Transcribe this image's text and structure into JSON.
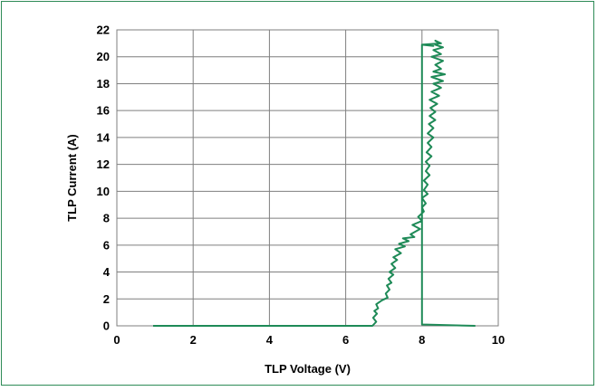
{
  "chart_data": {
    "type": "line",
    "xlabel": "TLP Voltage (V)",
    "ylabel": "TLP Current (A)",
    "xlim": [
      0,
      10
    ],
    "ylim": [
      0,
      22
    ],
    "x_ticks": [
      0,
      2,
      4,
      6,
      8,
      10
    ],
    "y_ticks": [
      0,
      2,
      4,
      6,
      8,
      10,
      12,
      14,
      16,
      18,
      20,
      22
    ],
    "grid": true,
    "series": [
      {
        "color": "#1e8a57",
        "x": [
          0.95,
          6.7,
          6.8,
          6.72,
          6.82,
          6.75,
          6.85,
          6.8,
          6.95,
          7.1,
          7.05,
          7.15,
          7.08,
          7.2,
          7.12,
          7.25,
          7.15,
          7.3,
          7.2,
          7.35,
          7.25,
          7.45,
          7.3,
          7.55,
          7.4,
          7.65,
          7.5,
          7.8,
          7.7,
          7.95,
          7.75,
          8.0,
          7.9,
          8.05,
          8.0,
          8.1,
          8.0,
          8.15,
          8.05,
          8.15,
          8.05,
          8.2,
          8.1,
          8.2,
          8.1,
          8.25,
          8.12,
          8.25,
          8.15,
          8.3,
          8.15,
          8.3,
          8.18,
          8.35,
          8.2,
          8.35,
          8.22,
          8.4,
          8.2,
          8.45,
          8.25,
          8.5,
          8.3,
          8.55,
          8.25,
          8.6,
          8.3,
          8.5,
          8.35,
          8.55,
          8.25,
          8.5,
          8.3,
          8.55,
          8.35,
          8.45,
          8.35,
          8.5,
          8.0,
          8.3,
          8.0,
          8.0,
          9.4
        ],
        "y": [
          0.0,
          0.0,
          0.3,
          0.6,
          0.9,
          1.1,
          1.3,
          1.6,
          1.9,
          2.1,
          2.4,
          2.7,
          3.0,
          3.2,
          3.5,
          3.8,
          4.0,
          4.3,
          4.6,
          4.9,
          5.1,
          5.4,
          5.7,
          5.9,
          6.1,
          6.3,
          6.5,
          6.6,
          6.8,
          7.2,
          7.5,
          7.8,
          8.1,
          8.5,
          8.8,
          9.1,
          9.5,
          9.8,
          10.1,
          10.5,
          10.8,
          11.2,
          11.5,
          11.9,
          12.2,
          12.6,
          12.9,
          13.3,
          13.6,
          14.0,
          14.3,
          14.7,
          15.0,
          15.3,
          15.6,
          15.9,
          16.2,
          16.5,
          16.8,
          17.1,
          17.4,
          17.7,
          18.0,
          18.2,
          18.5,
          18.7,
          18.9,
          19.1,
          19.4,
          19.7,
          20.0,
          20.2,
          20.5,
          20.7,
          20.9,
          21.0,
          21.2,
          21.0,
          20.9,
          20.8,
          20.9,
          0.1,
          0.0
        ]
      }
    ]
  }
}
